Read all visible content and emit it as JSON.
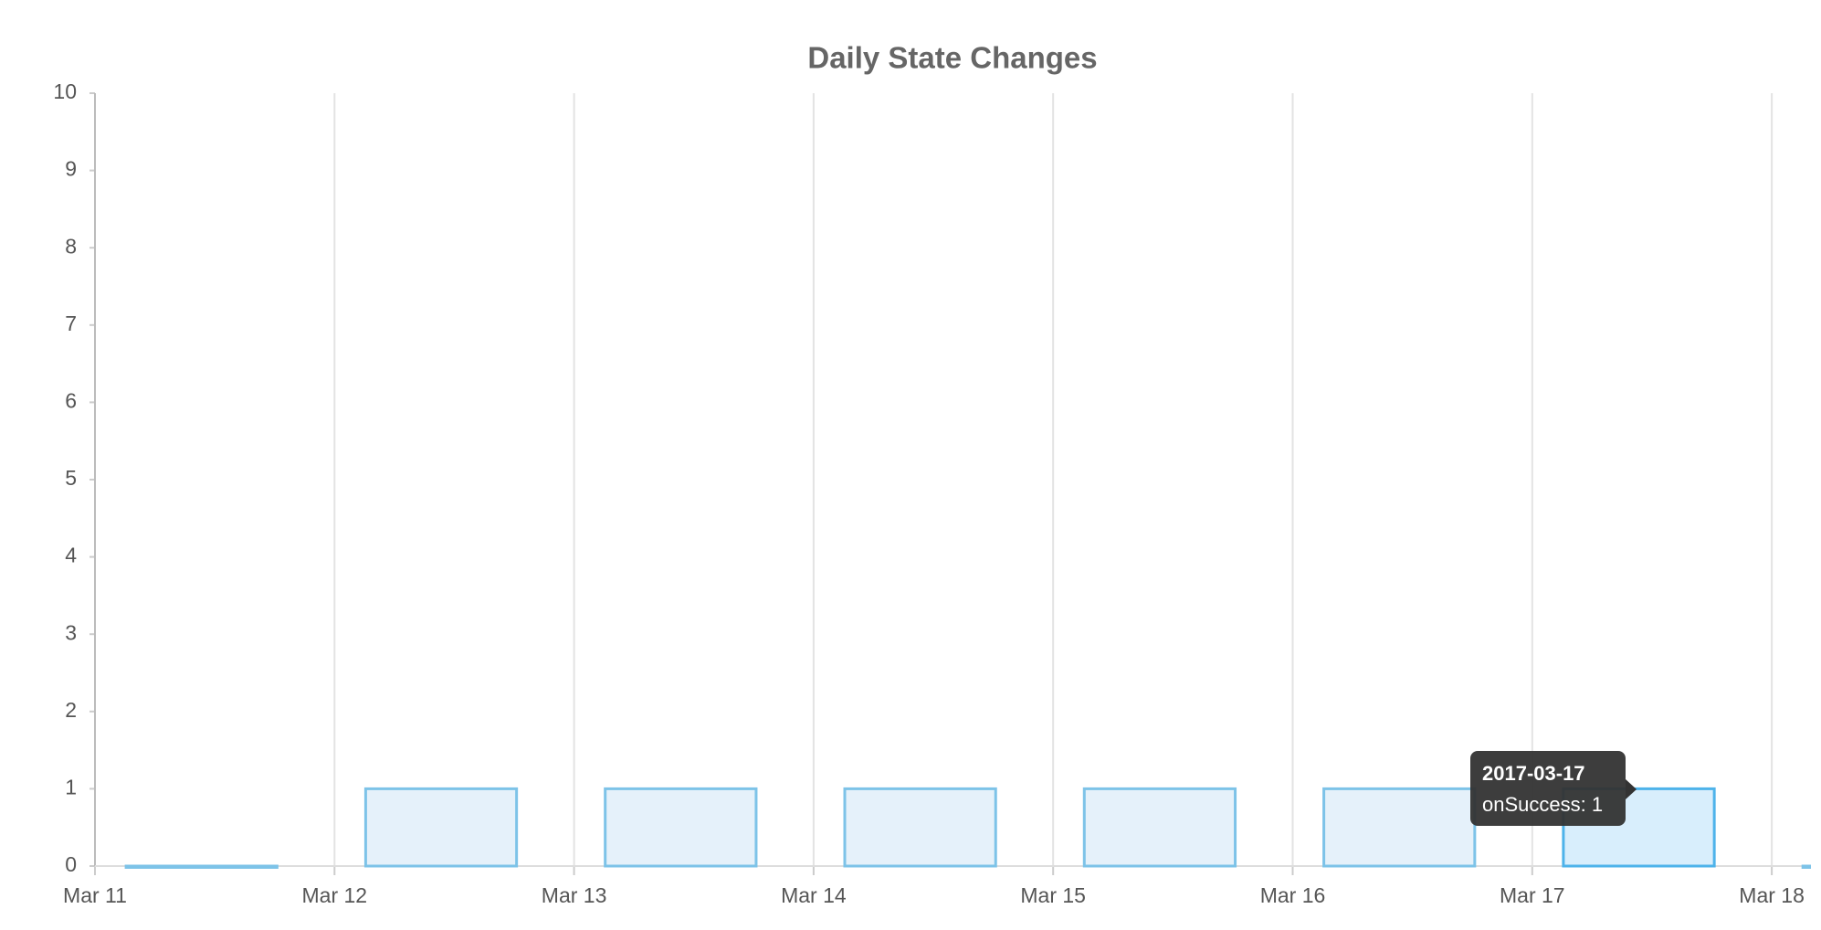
{
  "chart_data": {
    "type": "bar",
    "title": "Daily State Changes",
    "categories": [
      "Mar 11",
      "Mar 12",
      "Mar 13",
      "Mar 14",
      "Mar 15",
      "Mar 16",
      "Mar 17",
      "Mar 18"
    ],
    "series": [
      {
        "name": "onSuccess",
        "color": "#7dc3e8",
        "values": [
          0,
          1,
          1,
          1,
          1,
          1,
          1,
          0
        ]
      }
    ],
    "ylim": [
      0,
      10
    ],
    "yticks": [
      0,
      1,
      2,
      3,
      4,
      5,
      6,
      7,
      8,
      9,
      10
    ],
    "grid": true,
    "tooltip": {
      "title": "2017-03-17",
      "label": "onSuccess: 1",
      "index": 6
    }
  }
}
